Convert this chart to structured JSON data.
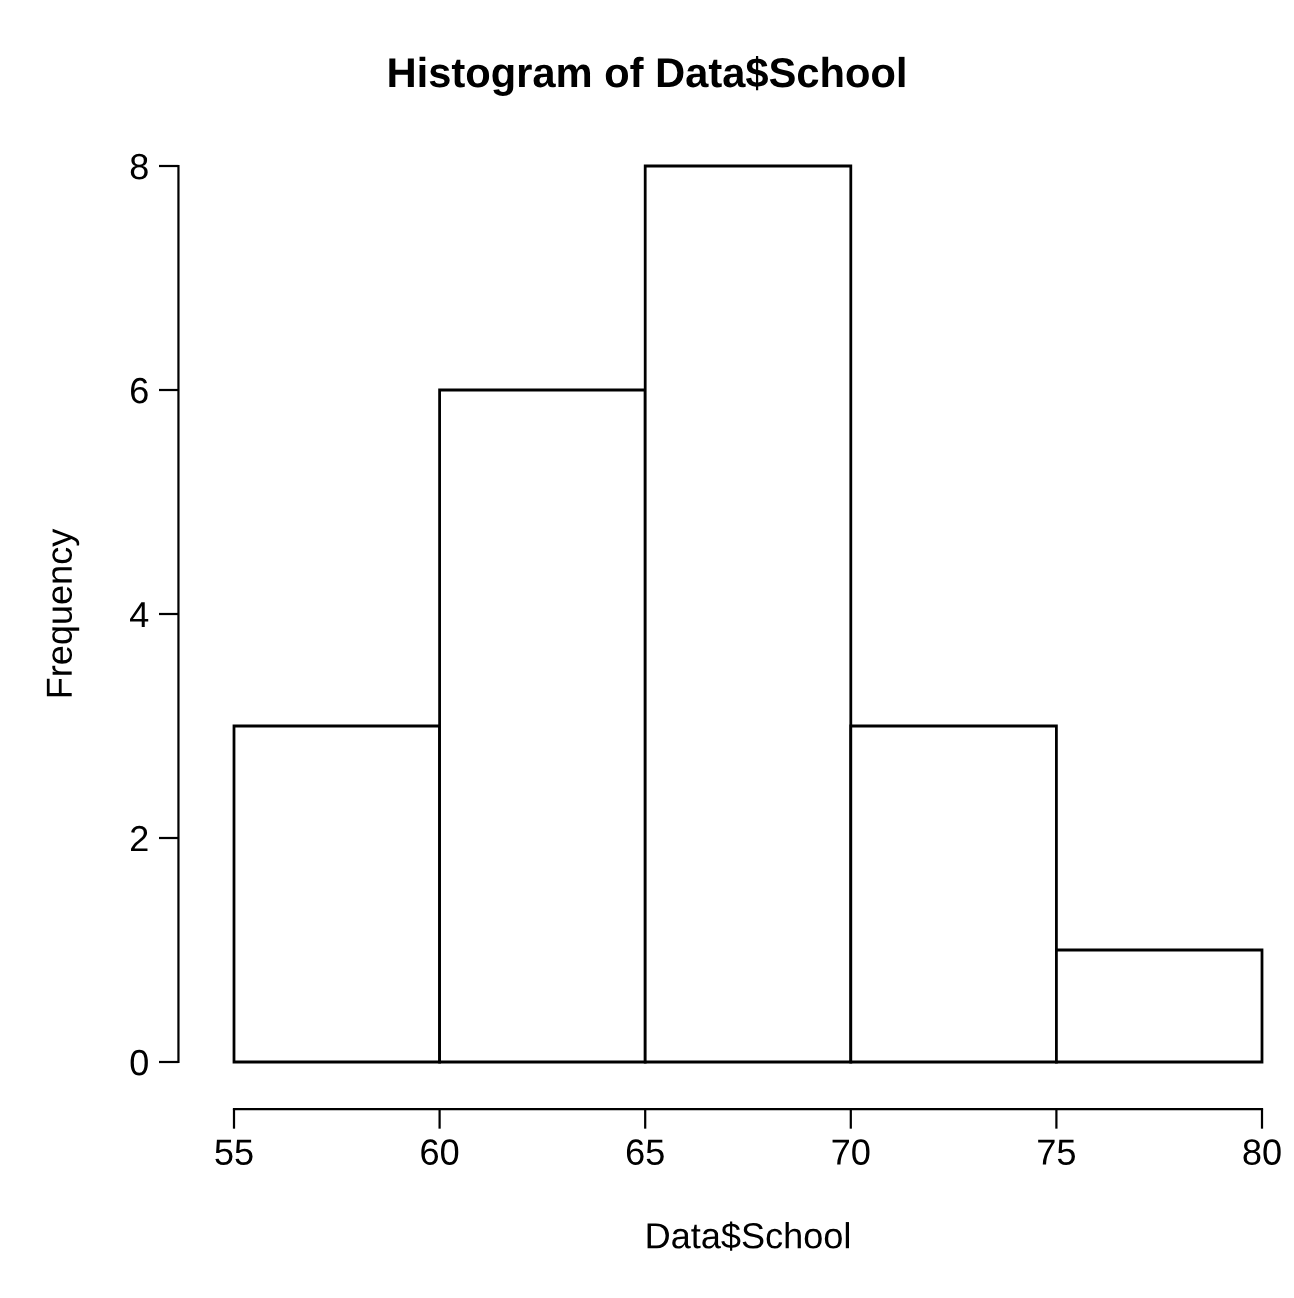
{
  "chart_data": {
    "type": "histogram",
    "title": "Histogram of Data$School",
    "xlabel": "Data$School",
    "ylabel": "Frequency",
    "bins": [
      55,
      60,
      65,
      70,
      75,
      80
    ],
    "values": [
      3,
      6,
      8,
      3,
      1
    ],
    "color": "#ffffff",
    "xlim": [
      55,
      80
    ],
    "ylim": [
      0,
      8
    ],
    "xticks": [
      55,
      60,
      65,
      70,
      75,
      80
    ],
    "yticks": [
      0,
      2,
      4,
      6,
      8
    ],
    "grid": false
  }
}
